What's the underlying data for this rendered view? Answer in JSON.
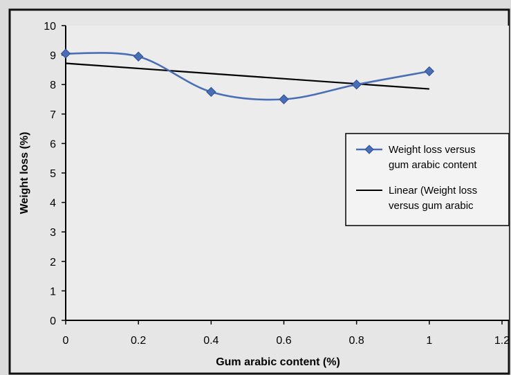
{
  "chart_data": {
    "type": "line",
    "xlabel": "Gum arabic content (%)",
    "ylabel": "Weight loss (%)",
    "xlim": [
      0,
      1.2
    ],
    "ylim": [
      0,
      10
    ],
    "x_ticks": [
      "0",
      "0.2",
      "0.4",
      "0.6",
      "0.8",
      "1",
      "1.2"
    ],
    "y_ticks": [
      "0",
      "1",
      "2",
      "3",
      "4",
      "5",
      "6",
      "7",
      "8",
      "9",
      "10"
    ],
    "grid": false,
    "legend_position": "right",
    "series": [
      {
        "name": "Weight loss versus gum arabic content",
        "color": "#4a6eb5",
        "marker": "diamond",
        "smooth": true,
        "x": [
          0,
          0.2,
          0.4,
          0.6,
          0.8,
          1.0
        ],
        "y": [
          9.05,
          8.95,
          7.75,
          7.5,
          8.0,
          8.45
        ]
      },
      {
        "name": "Linear (Weight loss versus gum arabic",
        "color": "#000000",
        "kind": "trendline",
        "x": [
          0,
          1.0
        ],
        "y": [
          8.72,
          7.85
        ]
      }
    ],
    "legend": [
      {
        "line1": "Weight loss versus",
        "line2": "gum arabic content"
      },
      {
        "line1": "Linear (Weight loss",
        "line2": "versus gum arabic"
      }
    ]
  }
}
